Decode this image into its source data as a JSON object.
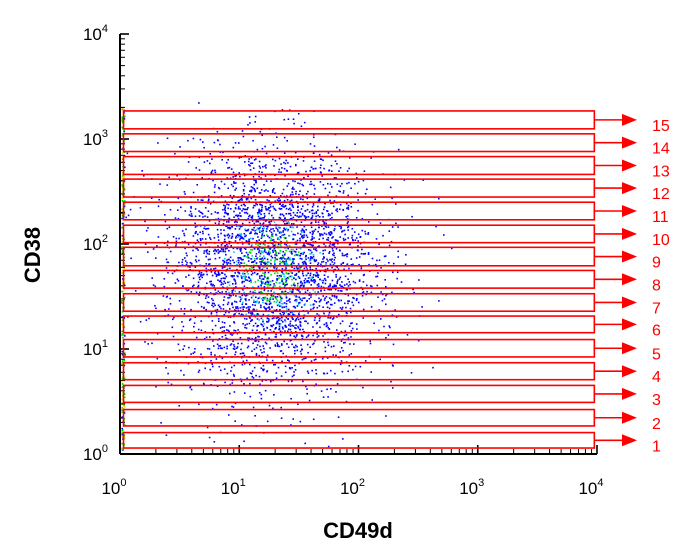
{
  "chart_data": {
    "type": "scatter",
    "title": "",
    "xlabel": "CD49d",
    "ylabel": "CD38",
    "x_scale": "log",
    "y_scale": "log",
    "xlim": [
      1,
      10000
    ],
    "ylim": [
      1,
      10000
    ],
    "x_ticks": [
      {
        "base": "10",
        "exp": "0"
      },
      {
        "base": "10",
        "exp": "1"
      },
      {
        "base": "10",
        "exp": "2"
      },
      {
        "base": "10",
        "exp": "3"
      },
      {
        "base": "10",
        "exp": "4"
      }
    ],
    "y_ticks": [
      {
        "base": "10",
        "exp": "0"
      },
      {
        "base": "10",
        "exp": "1"
      },
      {
        "base": "10",
        "exp": "2"
      },
      {
        "base": "10",
        "exp": "3"
      },
      {
        "base": "10",
        "exp": "4"
      }
    ],
    "grid": false,
    "gates": [
      {
        "label": "1",
        "ymin": 1.14,
        "ymax": 1.6
      },
      {
        "label": "2",
        "ymin": 1.85,
        "ymax": 2.65
      },
      {
        "label": "3",
        "ymin": 3.1,
        "ymax": 4.5
      },
      {
        "label": "4",
        "ymin": 5.1,
        "ymax": 7.4
      },
      {
        "label": "5",
        "ymin": 8.4,
        "ymax": 12.3
      },
      {
        "label": "6",
        "ymin": 14.3,
        "ymax": 20.6
      },
      {
        "label": "7",
        "ymin": 22.9,
        "ymax": 33.6
      },
      {
        "label": "8",
        "ymin": 38.0,
        "ymax": 56.0
      },
      {
        "label": "9",
        "ymin": 62.0,
        "ymax": 93.0
      },
      {
        "label": "10",
        "ymin": 103,
        "ymax": 151
      },
      {
        "label": "11",
        "ymin": 170,
        "ymax": 250
      },
      {
        "label": "12",
        "ymin": 280,
        "ymax": 415
      },
      {
        "label": "13",
        "ymin": 460,
        "ymax": 680
      },
      {
        "label": "14",
        "ymin": 760,
        "ymax": 1120
      },
      {
        "label": "15",
        "ymin": 1250,
        "ymax": 1850
      }
    ],
    "gate_xlim": [
      1.07,
      9500
    ],
    "population": {
      "center_x": 19,
      "center_y": 60,
      "n_points": 3400,
      "colors": {
        "sparse": "#0000ff",
        "medium": "#00c8ff",
        "dense": "#00dd00",
        "edge": "#ffcc00"
      }
    },
    "colors": {
      "gate": "#ff0000",
      "axis": "#000000"
    }
  }
}
